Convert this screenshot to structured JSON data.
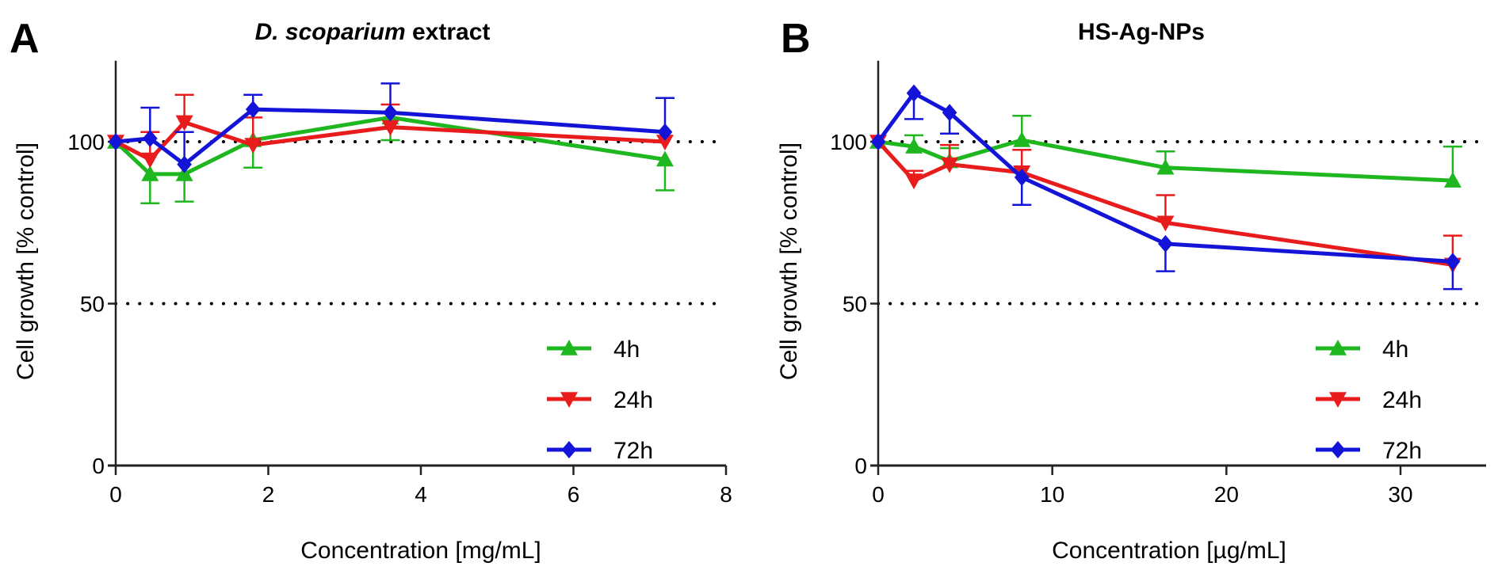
{
  "chart_data": [
    {
      "type": "line",
      "panel_letter": "A",
      "title_italic": "D. scoparium",
      "title_rest": " extract",
      "title": "D. scoparium extract",
      "xlabel": "Concentration [mg/mL]",
      "ylabel": "Cell growth [% control]",
      "xlim": [
        0,
        8
      ],
      "ylim": [
        0,
        125
      ],
      "xticks": [
        0,
        2,
        4,
        6,
        8
      ],
      "yticks": [
        0,
        50,
        100
      ],
      "reference_lines": [
        100,
        50
      ],
      "grid": false,
      "legend_position": "bottom-right",
      "x": [
        0,
        0.45,
        0.9,
        1.8,
        3.6,
        7.2
      ],
      "series": [
        {
          "name": "4h",
          "color": "#1fb71f",
          "marker": "triangle-up",
          "values": [
            100,
            90,
            90,
            100.5,
            107.5,
            94.5
          ],
          "error": [
            1,
            9,
            8.5,
            8.5,
            7,
            9.5
          ],
          "error_direction": "down"
        },
        {
          "name": "24h",
          "color": "#e81c1c",
          "marker": "triangle-down",
          "values": [
            100,
            94.5,
            106,
            99,
            104.5,
            100
          ],
          "error": [
            1,
            8.5,
            8.5,
            8.5,
            7,
            1
          ],
          "error_direction": "up"
        },
        {
          "name": "72h",
          "color": "#1414d8",
          "marker": "diamond",
          "values": [
            100,
            101,
            93,
            110,
            109,
            103
          ],
          "error": [
            1,
            9.5,
            10,
            4.5,
            9,
            10.5
          ],
          "error_direction": "up"
        }
      ]
    },
    {
      "type": "line",
      "panel_letter": "B",
      "title_italic": "",
      "title_rest": "HS-Ag-NPs",
      "title": "HS-Ag-NPs",
      "xlabel": "Concentration [µg/mL]",
      "ylabel": "Cell growth [% control]",
      "xlim": [
        0,
        35
      ],
      "ylim": [
        0,
        125
      ],
      "xticks": [
        0,
        10,
        20,
        30
      ],
      "yticks": [
        0,
        50,
        100
      ],
      "reference_lines": [
        100,
        50
      ],
      "grid": false,
      "legend_position": "bottom-right",
      "x": [
        0,
        2.05,
        4.1,
        8.25,
        16.5,
        33
      ],
      "series": [
        {
          "name": "4h",
          "color": "#1fb71f",
          "marker": "triangle-up",
          "values": [
            100,
            98.5,
            94,
            100.5,
            92,
            88
          ],
          "error": [
            1,
            3.5,
            4,
            7.5,
            5,
            10.5
          ],
          "error_direction": "up"
        },
        {
          "name": "24h",
          "color": "#e81c1c",
          "marker": "triangle-down",
          "values": [
            100,
            88,
            93,
            90.5,
            75,
            62
          ],
          "error": [
            1,
            3,
            6,
            7,
            8.5,
            9
          ],
          "error_direction": "up"
        },
        {
          "name": "72h",
          "color": "#1414d8",
          "marker": "diamond",
          "values": [
            100,
            115,
            109,
            89,
            68.5,
            63
          ],
          "error": [
            1,
            8,
            6.5,
            8.5,
            8.5,
            8.5
          ],
          "error_direction": "down"
        }
      ]
    }
  ]
}
